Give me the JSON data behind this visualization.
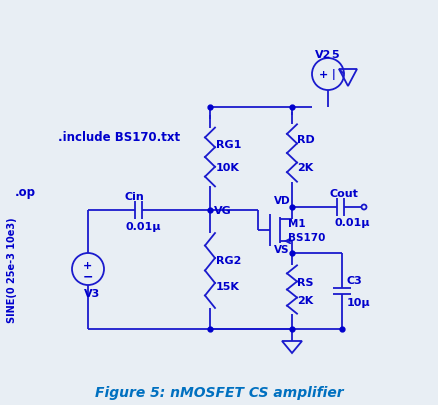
{
  "title": "Figure 5: nMOSFET CS amplifier",
  "title_color": "#0070C0",
  "title_fontsize": 10,
  "bg_color": "#e8eef4",
  "line_color": "#1a1acd",
  "dot_color": "#0000cc",
  "text_color": "#0000cc",
  "label_include": ".include BS170.txt",
  "label_op": ".op",
  "label_sine": "SINE(0 25e-3 10e3)",
  "label_v3": "V3",
  "label_v2": "V2",
  "label_s": "5",
  "label_cin": "Cin",
  "label_cin_val": "0.01μ",
  "label_vg": "VG",
  "label_rg1": "RG1",
  "label_rg1_val": "10K",
  "label_rg2": "RG2",
  "label_rg2_val": "15K",
  "label_rd": "RD",
  "label_rd_val": "2K",
  "label_rs": "RS",
  "label_rs_val": "2K",
  "label_cout": "Cout",
  "label_cout_val": "0.01μ",
  "label_c3": "C3",
  "label_c3_val": "10μ",
  "label_m1": "M1",
  "label_bs170": "BS170",
  "label_vd": "VD",
  "label_vs": "VS"
}
